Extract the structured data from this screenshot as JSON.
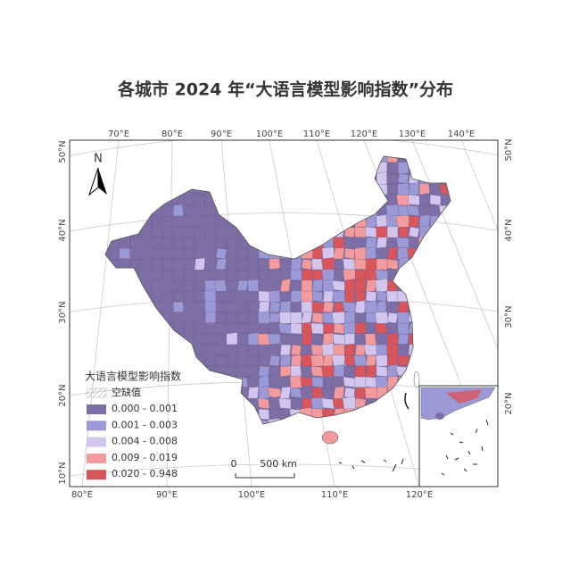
{
  "title": "各城市 2024 年“大语言模型影响指数”分布",
  "north": "N",
  "graticule": {
    "top": [
      "70°E",
      "80°E",
      "90°E",
      "100°E",
      "110°E",
      "120°E",
      "130°E",
      "140°E"
    ],
    "bottom": [
      "80°E",
      "90°E",
      "100°E",
      "110°E",
      "120°E"
    ],
    "left": [
      "50°N",
      "40°N",
      "30°N",
      "20°N",
      "10°N"
    ],
    "right": [
      "50°N",
      "40°N",
      "30°N",
      "20°N"
    ]
  },
  "legend": {
    "title": "大语言模型影响指数",
    "no_data": "空缺值",
    "classes": [
      {
        "label": "0.000 - 0.001",
        "color": "#7d6fa6"
      },
      {
        "label": "0.001 - 0.003",
        "color": "#9b99d6"
      },
      {
        "label": "0.004 - 0.008",
        "color": "#d3c6ee"
      },
      {
        "label": "0.009 - 0.019",
        "color": "#f39a9c"
      },
      {
        "label": "0.020 - 0.948",
        "color": "#d9555c"
      }
    ]
  },
  "scale_bar": {
    "start": "0",
    "end": "500 km"
  }
}
